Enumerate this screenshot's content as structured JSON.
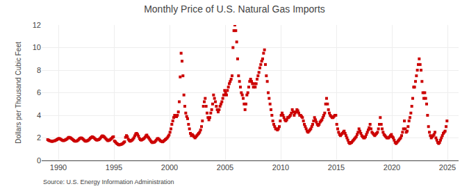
{
  "chart_data": {
    "type": "scatter",
    "title": "Monthly Price of U.S. Natural Gas Imports",
    "y_label": "Dollars per Thousand Cubic Feet",
    "source": "Source: U.S. Energy Information Administration",
    "color": "#cc0000",
    "marker": "square",
    "grid": true,
    "xlim": [
      1988.5,
      2026.0
    ],
    "xticks": [
      1990,
      1995,
      2000,
      2005,
      2010,
      2015,
      2020,
      2025
    ],
    "ylim": [
      0,
      12
    ],
    "yticks": [
      0,
      2,
      4,
      6,
      8,
      10,
      12
    ],
    "x": [
      1989.0416666666667,
      1989.125,
      1989.2083333333333,
      1989.2916666666667,
      1989.375,
      1989.4583333333333,
      1989.5416666666667,
      1989.625,
      1989.7083333333333,
      1989.7916666666667,
      1989.875,
      1989.9583333333333,
      1990.0416666666667,
      1990.125,
      1990.2083333333333,
      1990.2916666666667,
      1990.375,
      1990.4583333333333,
      1990.5416666666667,
      1990.625,
      1990.7083333333333,
      1990.7916666666667,
      1990.875,
      1990.9583333333333,
      1991.0416666666667,
      1991.125,
      1991.2083333333333,
      1991.2916666666667,
      1991.375,
      1991.4583333333333,
      1991.5416666666667,
      1991.625,
      1991.7083333333333,
      1991.7916666666667,
      1991.875,
      1991.9583333333333,
      1992.0416666666667,
      1992.125,
      1992.2083333333333,
      1992.2916666666667,
      1992.375,
      1992.4583333333333,
      1992.5416666666667,
      1992.625,
      1992.7083333333333,
      1992.7916666666667,
      1992.875,
      1992.9583333333333,
      1993.0416666666667,
      1993.125,
      1993.2083333333333,
      1993.2916666666667,
      1993.375,
      1993.4583333333333,
      1993.5416666666667,
      1993.625,
      1993.7083333333333,
      1993.7916666666667,
      1993.875,
      1993.9583333333333,
      1994.0416666666667,
      1994.125,
      1994.2083333333333,
      1994.2916666666667,
      1994.375,
      1994.4583333333333,
      1994.5416666666667,
      1994.625,
      1994.7083333333333,
      1994.7916666666667,
      1994.875,
      1994.9583333333333,
      1995.0416666666667,
      1995.125,
      1995.2083333333333,
      1995.2916666666667,
      1995.375,
      1995.4583333333333,
      1995.5416666666667,
      1995.625,
      1995.7083333333333,
      1995.7916666666667,
      1995.875,
      1995.9583333333333,
      1996.0416666666667,
      1996.125,
      1996.2083333333333,
      1996.2916666666667,
      1996.375,
      1996.4583333333333,
      1996.5416666666667,
      1996.625,
      1996.7083333333333,
      1996.7916666666667,
      1996.875,
      1996.9583333333333,
      1997.0416666666667,
      1997.125,
      1997.2083333333333,
      1997.2916666666667,
      1997.375,
      1997.4583333333333,
      1997.5416666666667,
      1997.625,
      1997.7083333333333,
      1997.7916666666667,
      1997.875,
      1997.9583333333333,
      1998.0416666666667,
      1998.125,
      1998.2083333333333,
      1998.2916666666667,
      1998.375,
      1998.4583333333333,
      1998.5416666666667,
      1998.625,
      1998.7083333333333,
      1998.7916666666667,
      1998.875,
      1998.9583333333333,
      1999.0416666666667,
      1999.125,
      1999.2083333333333,
      1999.2916666666667,
      1999.375,
      1999.4583333333333,
      1999.5416666666667,
      1999.625,
      1999.7083333333333,
      1999.7916666666667,
      1999.875,
      1999.9583333333333,
      2000.0416666666667,
      2000.125,
      2000.2083333333333,
      2000.2916666666667,
      2000.375,
      2000.4583333333333,
      2000.5416666666667,
      2000.625,
      2000.7083333333333,
      2000.7916666666667,
      2000.875,
      2000.9583333333333,
      2001.0416666666667,
      2001.125,
      2001.2083333333333,
      2001.2916666666667,
      2001.375,
      2001.4583333333333,
      2001.5416666666667,
      2001.625,
      2001.7083333333333,
      2001.7916666666667,
      2001.875,
      2001.9583333333333,
      2002.0416666666667,
      2002.125,
      2002.2083333333333,
      2002.2916666666667,
      2002.375,
      2002.4583333333333,
      2002.5416666666667,
      2002.625,
      2002.7083333333333,
      2002.7916666666667,
      2002.875,
      2002.9583333333333,
      2003.0416666666667,
      2003.125,
      2003.2083333333333,
      2003.2916666666667,
      2003.375,
      2003.4583333333333,
      2003.5416666666667,
      2003.625,
      2003.7083333333333,
      2003.7916666666667,
      2003.875,
      2003.9583333333333,
      2004.0416666666667,
      2004.125,
      2004.2083333333333,
      2004.2916666666667,
      2004.375,
      2004.4583333333333,
      2004.5416666666667,
      2004.625,
      2004.7083333333333,
      2004.7916666666667,
      2004.875,
      2004.9583333333333,
      2005.0416666666667,
      2005.125,
      2005.2083333333333,
      2005.2916666666667,
      2005.375,
      2005.4583333333333,
      2005.5416666666667,
      2005.625,
      2005.7083333333333,
      2005.7916666666667,
      2005.875,
      2005.9583333333333,
      2006.0416666666667,
      2006.125,
      2006.2083333333333,
      2006.2916666666667,
      2006.375,
      2006.4583333333333,
      2006.5416666666667,
      2006.625,
      2006.7083333333333,
      2006.7916666666667,
      2006.875,
      2006.9583333333333,
      2007.0416666666667,
      2007.125,
      2007.2083333333333,
      2007.2916666666667,
      2007.375,
      2007.4583333333333,
      2007.5416666666667,
      2007.625,
      2007.7083333333333,
      2007.7916666666667,
      2007.875,
      2007.9583333333333,
      2008.0416666666667,
      2008.125,
      2008.2083333333333,
      2008.2916666666667,
      2008.375,
      2008.4583333333333,
      2008.5416666666667,
      2008.625,
      2008.7083333333333,
      2008.7916666666667,
      2008.875,
      2008.9583333333333,
      2009.0416666666667,
      2009.125,
      2009.2083333333333,
      2009.2916666666667,
      2009.375,
      2009.4583333333333,
      2009.5416666666667,
      2009.625,
      2009.7083333333333,
      2009.7916666666667,
      2009.875,
      2009.9583333333333,
      2010.0416666666667,
      2010.125,
      2010.2083333333333,
      2010.2916666666667,
      2010.375,
      2010.4583333333333,
      2010.5416666666667,
      2010.625,
      2010.7083333333333,
      2010.7916666666667,
      2010.875,
      2010.9583333333333,
      2011.0416666666667,
      2011.125,
      2011.2083333333333,
      2011.2916666666667,
      2011.375,
      2011.4583333333333,
      2011.5416666666667,
      2011.625,
      2011.7083333333333,
      2011.7916666666667,
      2011.875,
      2011.9583333333333,
      2012.0416666666667,
      2012.125,
      2012.2083333333333,
      2012.2916666666667,
      2012.375,
      2012.4583333333333,
      2012.5416666666667,
      2012.625,
      2012.7083333333333,
      2012.7916666666667,
      2012.875,
      2012.9583333333333,
      2013.0416666666667,
      2013.125,
      2013.2083333333333,
      2013.2916666666667,
      2013.375,
      2013.4583333333333,
      2013.5416666666667,
      2013.625,
      2013.7083333333333,
      2013.7916666666667,
      2013.875,
      2013.9583333333333,
      2014.0416666666667,
      2014.125,
      2014.2083333333333,
      2014.2916666666667,
      2014.375,
      2014.4583333333333,
      2014.5416666666667,
      2014.625,
      2014.7083333333333,
      2014.7916666666667,
      2014.875,
      2014.9583333333333,
      2015.0416666666667,
      2015.125,
      2015.2083333333333,
      2015.2916666666667,
      2015.375,
      2015.4583333333333,
      2015.5416666666667,
      2015.625,
      2015.7083333333333,
      2015.7916666666667,
      2015.875,
      2015.9583333333333,
      2016.0416666666667,
      2016.125,
      2016.2083333333333,
      2016.2916666666667,
      2016.375,
      2016.4583333333333,
      2016.5416666666667,
      2016.625,
      2016.7083333333333,
      2016.7916666666667,
      2016.875,
      2016.9583333333333,
      2017.0416666666667,
      2017.125,
      2017.2083333333333,
      2017.2916666666667,
      2017.375,
      2017.4583333333333,
      2017.5416666666667,
      2017.625,
      2017.7083333333333,
      2017.7916666666667,
      2017.875,
      2017.9583333333333,
      2018.0416666666667,
      2018.125,
      2018.2083333333333,
      2018.2916666666667,
      2018.375,
      2018.4583333333333,
      2018.5416666666667,
      2018.625,
      2018.7083333333333,
      2018.7916666666667,
      2018.875,
      2018.9583333333333,
      2019.0416666666667,
      2019.125,
      2019.2083333333333,
      2019.2916666666667,
      2019.375,
      2019.4583333333333,
      2019.5416666666667,
      2019.625,
      2019.7083333333333,
      2019.7916666666667,
      2019.875,
      2019.9583333333333,
      2020.0416666666667,
      2020.125,
      2020.2083333333333,
      2020.2916666666667,
      2020.375,
      2020.4583333333333,
      2020.5416666666667,
      2020.625,
      2020.7083333333333,
      2020.7916666666667,
      2020.875,
      2020.9583333333333,
      2021.0416666666667,
      2021.125,
      2021.2083333333333,
      2021.2916666666667,
      2021.375,
      2021.4583333333333,
      2021.5416666666667,
      2021.625,
      2021.7083333333333,
      2021.7916666666667,
      2021.875,
      2021.9583333333333,
      2022.0416666666667,
      2022.125,
      2022.2083333333333,
      2022.2916666666667,
      2022.375,
      2022.4583333333333,
      2022.5416666666667,
      2022.625,
      2022.7083333333333,
      2022.7916666666667,
      2022.875,
      2022.9583333333333,
      2023.0416666666667,
      2023.125,
      2023.2083333333333,
      2023.2916666666667,
      2023.375,
      2023.4583333333333,
      2023.5416666666667,
      2023.625,
      2023.7083333333333,
      2023.7916666666667,
      2023.875,
      2023.9583333333333,
      2024.0416666666667,
      2024.125,
      2024.2083333333333,
      2024.2916666666667,
      2024.375,
      2024.4583333333333,
      2024.5416666666667,
      2024.625,
      2024.7083333333333,
      2024.7916666666667,
      2024.875,
      2024.9583333333333
    ],
    "values": [
      1.84,
      1.79,
      1.75,
      1.72,
      1.7,
      1.68,
      1.72,
      1.73,
      1.76,
      1.8,
      1.85,
      1.9,
      1.95,
      1.92,
      1.88,
      1.82,
      1.78,
      1.75,
      1.78,
      1.82,
      1.86,
      1.92,
      2.0,
      2.05,
      2.02,
      1.98,
      1.92,
      1.85,
      1.78,
      1.72,
      1.7,
      1.72,
      1.75,
      1.82,
      1.9,
      1.97,
      2.0,
      1.96,
      1.9,
      1.82,
      1.75,
      1.7,
      1.72,
      1.76,
      1.8,
      1.88,
      1.97,
      2.03,
      2.1,
      2.05,
      2.0,
      1.92,
      1.85,
      1.8,
      1.82,
      1.85,
      1.9,
      2.0,
      2.1,
      2.18,
      2.15,
      2.08,
      2.0,
      1.9,
      1.82,
      1.75,
      1.78,
      1.82,
      1.88,
      1.96,
      2.05,
      2.1,
      1.72,
      1.65,
      1.55,
      1.48,
      1.42,
      1.38,
      1.4,
      1.42,
      1.45,
      1.5,
      1.58,
      1.65,
      2.05,
      2.2,
      2.1,
      1.88,
      1.78,
      1.7,
      1.75,
      1.8,
      1.88,
      2.0,
      2.18,
      2.35,
      2.4,
      2.3,
      2.15,
      1.95,
      1.85,
      1.8,
      1.85,
      1.9,
      1.95,
      2.05,
      2.18,
      2.25,
      2.1,
      2.0,
      1.88,
      1.75,
      1.65,
      1.58,
      1.6,
      1.62,
      1.68,
      1.78,
      1.9,
      1.95,
      1.88,
      1.8,
      1.72,
      1.68,
      1.65,
      1.7,
      1.78,
      1.85,
      1.92,
      2.0,
      2.12,
      2.25,
      2.5,
      2.8,
      3.2,
      3.5,
      3.8,
      4.0,
      3.95,
      3.88,
      4.0,
      4.3,
      5.2,
      7.4,
      9.5,
      8.8,
      7.5,
      5.8,
      4.8,
      4.2,
      3.9,
      3.7,
      3.2,
      2.8,
      2.4,
      2.2,
      2.3,
      2.2,
      2.1,
      2.0,
      2.1,
      2.2,
      2.3,
      2.4,
      2.5,
      2.7,
      3.0,
      3.5,
      4.8,
      5.2,
      5.5,
      4.8,
      4.2,
      3.8,
      3.6,
      3.8,
      4.2,
      4.5,
      5.0,
      5.8,
      5.5,
      5.2,
      4.8,
      4.5,
      4.3,
      4.5,
      4.8,
      5.0,
      5.2,
      5.5,
      5.8,
      6.2,
      6.0,
      5.8,
      6.2,
      6.5,
      6.8,
      7.0,
      7.2,
      7.5,
      10.0,
      11.5,
      12.0,
      11.5,
      10.5,
      9.0,
      7.5,
      7.0,
      6.5,
      6.0,
      5.8,
      5.5,
      5.0,
      4.5,
      5.0,
      5.8,
      6.0,
      6.5,
      7.0,
      7.2,
      7.0,
      6.8,
      6.5,
      6.8,
      6.5,
      6.8,
      7.2,
      7.5,
      7.8,
      8.2,
      8.5,
      8.8,
      9.0,
      9.5,
      9.8,
      8.5,
      7.5,
      7.0,
      6.0,
      5.5,
      5.0,
      4.5,
      4.0,
      3.5,
      3.2,
      3.0,
      2.8,
      2.8,
      2.7,
      2.8,
      3.0,
      3.5,
      4.0,
      4.2,
      4.0,
      3.8,
      3.6,
      3.5,
      3.6,
      3.8,
      3.8,
      3.9,
      4.0,
      4.2,
      4.5,
      4.3,
      4.0,
      4.2,
      4.3,
      4.5,
      4.4,
      4.2,
      4.0,
      4.0,
      3.9,
      3.8,
      3.5,
      3.2,
      3.0,
      2.8,
      2.6,
      2.5,
      2.6,
      2.7,
      2.8,
      3.0,
      3.2,
      3.5,
      3.8,
      3.6,
      3.4,
      3.2,
      3.1,
      3.2,
      3.4,
      3.5,
      3.6,
      3.8,
      4.0,
      4.2,
      5.0,
      5.5,
      5.0,
      4.5,
      4.2,
      4.0,
      3.9,
      3.8,
      3.8,
      3.9,
      4.0,
      4.0,
      3.2,
      2.8,
      2.5,
      2.3,
      2.2,
      2.3,
      2.4,
      2.5,
      2.6,
      2.4,
      2.2,
      2.0,
      1.8,
      1.6,
      1.5,
      1.55,
      1.6,
      1.7,
      1.8,
      1.9,
      2.0,
      2.1,
      2.3,
      2.5,
      2.8,
      2.6,
      2.4,
      2.2,
      2.1,
      2.0,
      2.0,
      2.1,
      2.3,
      2.5,
      2.7,
      2.9,
      3.2,
      2.8,
      2.5,
      2.4,
      2.3,
      2.2,
      2.3,
      2.4,
      2.5,
      2.8,
      3.2,
      3.8,
      3.2,
      2.8,
      2.5,
      2.3,
      2.2,
      2.1,
      2.0,
      2.0,
      2.0,
      2.1,
      2.2,
      2.3,
      2.1,
      2.0,
      1.8,
      1.6,
      1.5,
      1.6,
      1.7,
      1.8,
      1.9,
      2.0,
      2.2,
      2.5,
      2.8,
      3.5,
      2.8,
      2.5,
      2.6,
      3.0,
      3.5,
      3.8,
      4.2,
      4.8,
      5.5,
      6.5,
      6.5,
      7.0,
      7.5,
      8.0,
      8.5,
      9.0,
      8.5,
      8.0,
      7.0,
      6.0,
      5.5,
      6.0,
      5.5,
      5.0,
      4.0,
      3.0,
      2.5,
      2.2,
      2.0,
      2.1,
      2.2,
      2.3,
      2.5,
      2.0,
      1.8,
      1.6,
      1.5,
      1.6,
      1.8,
      2.0,
      2.2,
      2.4,
      2.5,
      2.6,
      3.0,
      3.5
    ]
  }
}
